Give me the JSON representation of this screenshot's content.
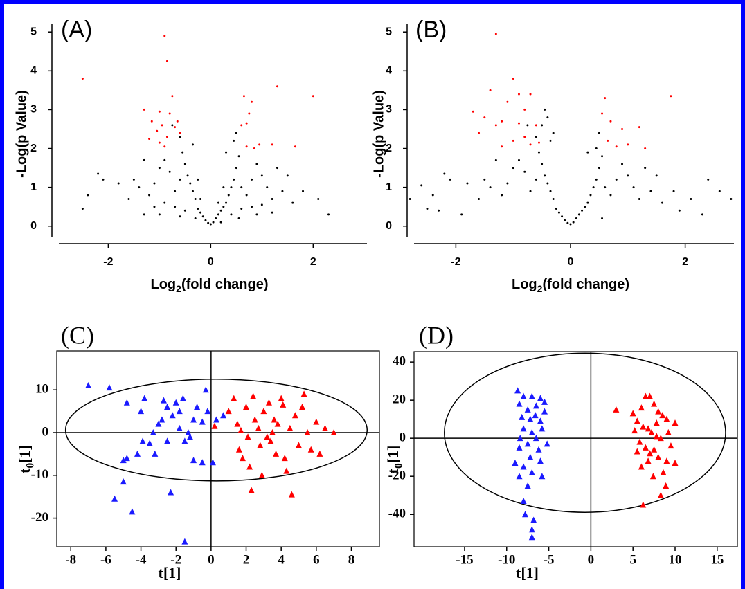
{
  "chart_data": [
    {
      "type": "scatter",
      "panel_label": "(A)",
      "y_label": "-Log(p Value)",
      "x_label": [
        "Log",
        "2",
        "(fold change)"
      ],
      "xlim": [
        -3.1,
        3.05
      ],
      "ylim": [
        -0.45,
        5.2
      ],
      "xticks": [
        -2,
        0,
        2
      ],
      "yticks": [
        0,
        1,
        2,
        3,
        4,
        5
      ],
      "frame": "open",
      "font": "sans",
      "marker": "dot",
      "series": [
        {
          "color": "#000000",
          "x": [
            0,
            0.05,
            -0.05,
            0.1,
            -0.1,
            0.15,
            -0.15,
            0.2,
            -0.2,
            0.25,
            -0.25,
            0.3,
            -0.3,
            0.35,
            -0.35,
            0.4,
            -0.4,
            0.45,
            -0.45,
            0.5,
            -0.5,
            0.55,
            -0.55,
            0.6,
            -0.6,
            0.7,
            -0.7,
            0.8,
            -0.8,
            0.9,
            -0.9,
            1.0,
            -1.0,
            1.1,
            -1.1,
            1.2,
            -1.2,
            1.3,
            -1.3,
            1.4,
            -1.4,
            1.5,
            -1.5,
            1.6,
            -1.6,
            1.8,
            -1.8,
            2.1,
            -2.1,
            -2.4,
            -2.5,
            2.3,
            -2.2,
            0.2,
            -0.3,
            0.4,
            -0.5,
            0.6,
            -0.7,
            0.8,
            -0.9,
            1.0,
            -1.1,
            0.3,
            -0.35,
            0.45,
            -0.6,
            0.5,
            -0.75,
            0.55,
            -0.6,
            0.9,
            -1.0,
            1.2,
            -1.3,
            0.15,
            -0.2,
            0.25,
            -0.25
          ],
          "y": [
            0.05,
            0.1,
            0.08,
            0.2,
            0.15,
            0.3,
            0.25,
            0.4,
            0.35,
            0.5,
            0.45,
            0.6,
            0.7,
            0.8,
            0.9,
            1.0,
            1.1,
            1.2,
            1.3,
            1.5,
            1.6,
            1.8,
            1.9,
            1.0,
            1.2,
            0.8,
            0.9,
            1.2,
            1.4,
            1.6,
            1.7,
            1.3,
            1.5,
            1.0,
            1.1,
            0.7,
            0.8,
            1.5,
            1.7,
            0.9,
            1.0,
            1.3,
            1.2,
            0.6,
            0.7,
            0.9,
            1.1,
            0.7,
            1.2,
            0.8,
            0.45,
            0.3,
            1.35,
            0.1,
            0.2,
            0.3,
            0.4,
            0.45,
            0.5,
            0.5,
            0.6,
            0.55,
            0.5,
            1.9,
            2.1,
            2.2,
            2.3,
            2.4,
            2.6,
            0.2,
            0.25,
            0.3,
            0.3,
            0.35,
            0.3,
            0.6,
            0.7,
            1.0,
            1.2
          ]
        },
        {
          "color": "#ff0000",
          "x": [
            -2.5,
            -0.9,
            -0.85,
            -0.75,
            -1.3,
            -1.0,
            -0.8,
            -1.15,
            -0.95,
            -0.7,
            -1.05,
            -0.6,
            -0.85,
            -1.0,
            -0.9,
            -1.2,
            -0.65,
            0.65,
            0.8,
            1.3,
            2.0,
            0.7,
            0.6,
            0.95,
            0.7,
            0.85,
            1.2,
            1.65,
            0.75
          ],
          "y": [
            3.8,
            4.9,
            4.25,
            3.35,
            3.0,
            2.95,
            2.9,
            2.7,
            2.6,
            2.55,
            2.45,
            2.4,
            2.3,
            2.15,
            2.05,
            2.25,
            2.7,
            3.35,
            3.2,
            3.6,
            3.35,
            2.65,
            2.6,
            2.1,
            2.05,
            2.0,
            2.1,
            2.05,
            2.9
          ]
        }
      ]
    },
    {
      "type": "scatter",
      "panel_label": "(B)",
      "y_label": "-Log(p Value)",
      "x_label": [
        "Log",
        "2",
        "(fold change)"
      ],
      "xlim": [
        -2.85,
        2.85
      ],
      "ylim": [
        -0.45,
        5.2
      ],
      "xticks": [
        -2,
        0,
        2
      ],
      "yticks": [
        0,
        1,
        2,
        3,
        4,
        5
      ],
      "frame": "open",
      "font": "sans",
      "marker": "dot",
      "series": [
        {
          "color": "#000000",
          "x": [
            0,
            0.05,
            -0.05,
            0.1,
            -0.1,
            0.15,
            -0.15,
            0.2,
            -0.2,
            0.25,
            -0.25,
            0.3,
            -0.3,
            0.35,
            -0.35,
            0.4,
            -0.4,
            0.45,
            -0.45,
            0.5,
            -0.5,
            0.55,
            -0.55,
            0.6,
            -0.6,
            0.7,
            -0.7,
            0.8,
            -0.8,
            0.9,
            -0.9,
            1.0,
            -1.0,
            1.1,
            -1.1,
            1.2,
            -1.2,
            1.3,
            -1.3,
            1.4,
            -1.4,
            1.5,
            -1.5,
            1.6,
            -1.6,
            1.8,
            -1.8,
            2.1,
            -2.1,
            -2.4,
            -2.5,
            2.3,
            -2.2,
            -2.8,
            2.8,
            -2.6,
            2.6,
            -2.3,
            2.4,
            -1.9,
            1.9,
            -0.45,
            -0.4,
            -0.5,
            -0.3,
            -0.35,
            0.3,
            0.45,
            -0.6,
            0.5,
            -0.75,
            0.55
          ],
          "y": [
            0.05,
            0.1,
            0.08,
            0.2,
            0.15,
            0.3,
            0.25,
            0.4,
            0.35,
            0.5,
            0.45,
            0.6,
            0.7,
            0.8,
            0.9,
            1.0,
            1.1,
            1.2,
            1.3,
            1.5,
            1.6,
            1.8,
            1.9,
            1.0,
            1.2,
            0.8,
            0.9,
            1.2,
            1.4,
            1.6,
            1.7,
            1.3,
            1.5,
            1.0,
            1.1,
            0.7,
            0.8,
            1.5,
            1.7,
            0.9,
            1.0,
            1.3,
            1.2,
            0.6,
            0.7,
            0.9,
            1.1,
            0.7,
            1.2,
            0.8,
            0.45,
            0.3,
            1.35,
            0.7,
            0.7,
            1.05,
            0.9,
            0.4,
            1.2,
            0.3,
            0.4,
            3.0,
            2.8,
            2.6,
            2.4,
            2.2,
            1.9,
            2.0,
            2.3,
            2.4,
            2.6,
            0.2
          ]
        },
        {
          "color": "#ff0000",
          "x": [
            -1.3,
            -1.0,
            -1.4,
            -0.9,
            -0.7,
            -1.1,
            -0.8,
            -1.7,
            -1.5,
            -1.2,
            -0.9,
            -0.6,
            -1.3,
            -1.6,
            -0.8,
            -1.0,
            -0.7,
            -1.2,
            -0.55,
            0.6,
            1.75,
            0.55,
            0.7,
            0.9,
            1.2,
            0.65,
            1.0,
            1.3,
            0.8
          ],
          "y": [
            4.95,
            3.8,
            3.5,
            3.4,
            3.4,
            3.2,
            3.0,
            2.95,
            2.8,
            2.7,
            2.65,
            2.6,
            2.6,
            2.4,
            2.3,
            2.2,
            2.1,
            2.05,
            2.15,
            3.3,
            3.35,
            2.9,
            2.7,
            2.5,
            2.55,
            2.2,
            2.1,
            2.0,
            2.05
          ]
        }
      ]
    },
    {
      "type": "scatter",
      "panel_label": "(C)",
      "y_label": [
        "t",
        "0",
        "[1]"
      ],
      "x_label": "t[1]",
      "xlim": [
        -8.8,
        9.6
      ],
      "ylim": [
        -26.7,
        19.1
      ],
      "xticks": [
        -8,
        -6,
        -4,
        -2,
        0,
        2,
        4,
        6,
        8
      ],
      "yticks": [
        10,
        0,
        -10,
        -20
      ],
      "frame": "box",
      "zero_lines": true,
      "font": "serif",
      "marker": "triangle",
      "ellipse": {
        "cx": 0.3,
        "cy": 0.6,
        "rx": 8.6,
        "ry": 11.9
      },
      "series": [
        {
          "color": "#1a1aff",
          "x": [
            -7,
            -5.8,
            -5.5,
            -5,
            -4.8,
            -4.5,
            -4.8,
            -4,
            -3.8,
            -3.5,
            -3.2,
            -3,
            -2.8,
            -2.5,
            -2.3,
            -2.2,
            -2,
            -1.8,
            -1.6,
            -1.5,
            -1.3,
            -1.2,
            -1.5,
            -1,
            -0.8,
            -0.5,
            -0.3,
            0.1,
            -0.2,
            -3.9,
            -4.2,
            -2.7,
            -1.8,
            -5,
            0.3,
            -0.5,
            -3.3,
            -2.5,
            0.7,
            -1
          ],
          "y": [
            11,
            10.5,
            -15.5,
            -6.5,
            -6,
            -18.5,
            7,
            5,
            8,
            -2.5,
            -5,
            2,
            3,
            6,
            -14,
            4,
            7,
            5,
            8,
            -2,
            0,
            -1,
            -25.5,
            3,
            6,
            -7,
            10,
            -7,
            5,
            -2,
            -5,
            7.5,
            1,
            -11.5,
            3,
            2.5,
            0,
            -2,
            4,
            -6.5
          ]
        },
        {
          "color": "#ff0000",
          "x": [
            0.2,
            1,
            1.5,
            1.6,
            1.8,
            2,
            2.2,
            2.3,
            2.5,
            2.7,
            2.8,
            3,
            3.2,
            3.3,
            3.5,
            3.7,
            3.8,
            4,
            4.2,
            4.5,
            4.6,
            4.8,
            5,
            5.2,
            5.5,
            5.7,
            6,
            6.2,
            6.5,
            7,
            1.3,
            2.1,
            2.9,
            3.6,
            4.3,
            5.3,
            1.7,
            3.4,
            4.1,
            2.4
          ],
          "y": [
            1.5,
            5,
            2,
            -4,
            -6,
            6,
            -8,
            -13.5,
            3,
            1,
            -3,
            5,
            -1,
            7,
            0,
            -5,
            2,
            8,
            -6,
            1,
            -14.5,
            4,
            -3,
            6,
            0,
            -4,
            2.5,
            -5,
            1,
            0,
            8,
            -1,
            -10,
            3,
            -9,
            9,
            0.5,
            -2,
            6.5,
            8.5
          ]
        }
      ]
    },
    {
      "type": "scatter",
      "panel_label": "(D)",
      "y_label": [
        "t",
        "0",
        "[1]"
      ],
      "x_label": "t[1]",
      "xlim": [
        -21,
        17.4
      ],
      "ylim": [
        -57,
        45.5
      ],
      "xticks": [
        -15,
        -10,
        -5,
        0,
        5,
        10,
        15
      ],
      "yticks": [
        40,
        20,
        0,
        -20,
        -40
      ],
      "frame": "box",
      "zero_lines": true,
      "font": "serif",
      "marker": "triangle",
      "ellipse": {
        "cx": -0.7,
        "cy": 2.9,
        "rx": 16.7,
        "ry": 41.8
      },
      "series": [
        {
          "color": "#1a1aff",
          "x": [
            -8.7,
            -8,
            -7,
            -6,
            -8.5,
            -7.5,
            -6.5,
            -5.5,
            -8.2,
            -7.2,
            -6,
            -5.8,
            -8,
            -7,
            -6.5,
            -7.5,
            -5.2,
            -8.5,
            -6.2,
            -9,
            -8,
            -7,
            -5.8,
            -8.5,
            -7.5,
            -8,
            -7.8,
            -6.8,
            -7,
            -7,
            -6,
            -7.2,
            -6.6,
            -8.4,
            -5.5
          ],
          "y": [
            25,
            22,
            22,
            21,
            18,
            15,
            17,
            14,
            11,
            10,
            9,
            5,
            5,
            3,
            0,
            -3,
            -3,
            -5,
            -6,
            -13,
            -15,
            -18,
            -20,
            -20,
            -25,
            -33,
            -40,
            -43,
            -48,
            -52,
            -12,
            -10,
            12,
            0,
            19
          ]
        },
        {
          "color": "#ff0000",
          "x": [
            3,
            5,
            5.5,
            6,
            6.5,
            7,
            7.5,
            8,
            8.5,
            9,
            10,
            6.2,
            6.8,
            7.2,
            7.8,
            8.3,
            5.2,
            5.8,
            6.5,
            7,
            7.5,
            8,
            9,
            10,
            6,
            7.4,
            8.6,
            6.2,
            8.3,
            9.5,
            5.5,
            7.8,
            6.8,
            9.2,
            8.9
          ],
          "y": [
            15,
            13,
            9,
            16,
            22,
            22,
            18,
            14,
            12,
            10,
            8,
            6,
            5,
            3,
            1,
            0,
            4,
            -2,
            -5,
            -8,
            -6,
            -10,
            -12,
            -13,
            -15,
            -20,
            -18,
            -35,
            -30,
            -4,
            -7,
            8,
            -12,
            3,
            -25
          ]
        }
      ]
    }
  ]
}
